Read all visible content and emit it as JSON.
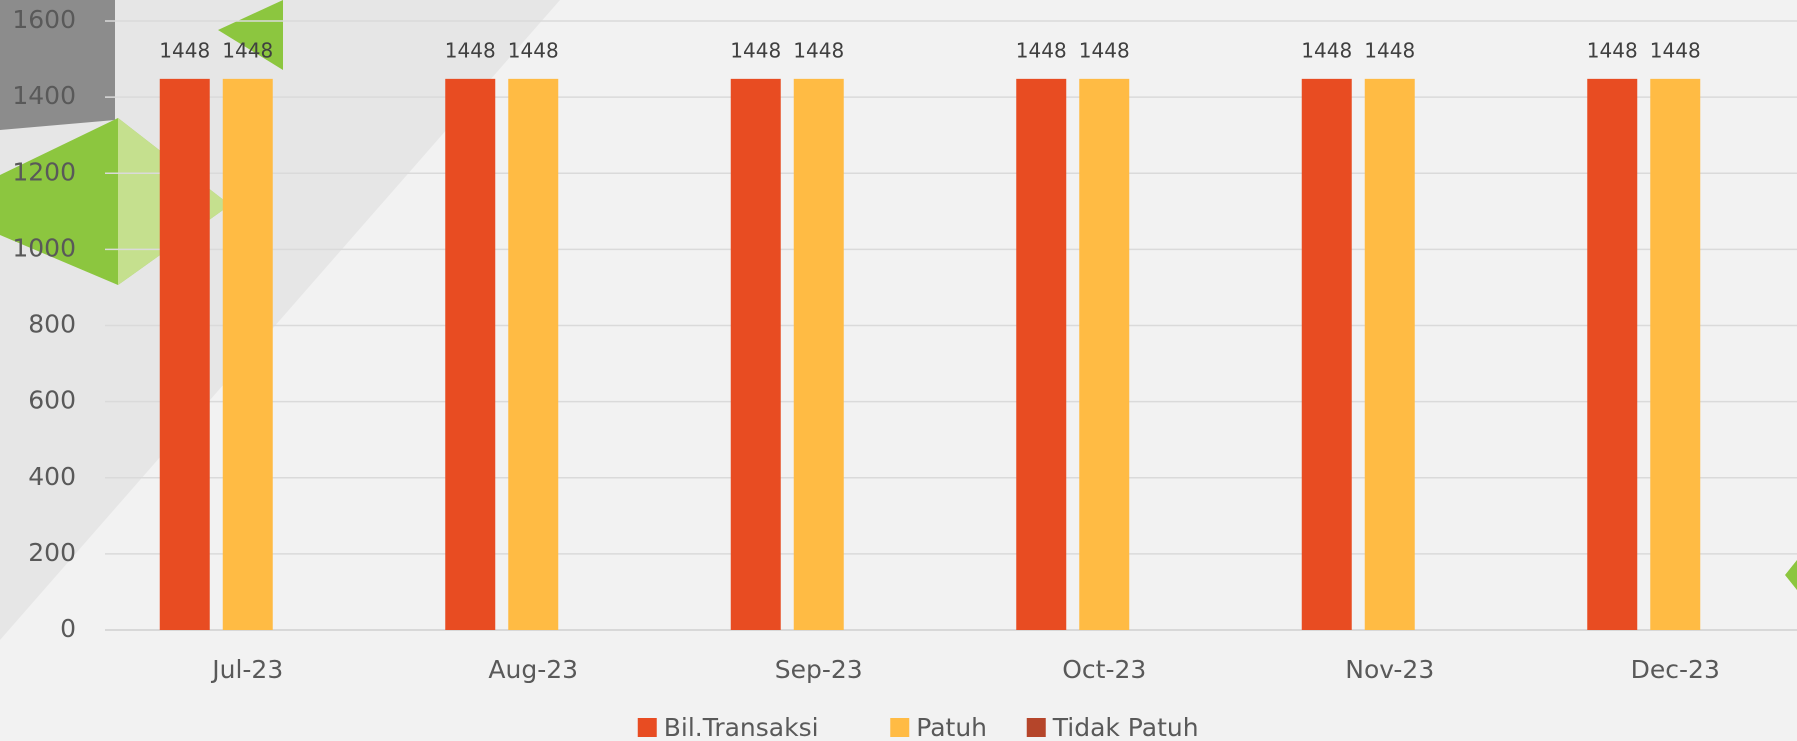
{
  "chart_data": {
    "type": "bar",
    "categories": [
      "Jul-23",
      "Aug-23",
      "Sep-23",
      "Oct-23",
      "Nov-23",
      "Dec-23"
    ],
    "series": [
      {
        "name": "Bil.Transaksi",
        "color": "#e84c22",
        "values": [
          1448,
          1448,
          1448,
          1448,
          1448,
          1448
        ]
      },
      {
        "name": "Patuh",
        "color": "#ffbb44",
        "values": [
          1448,
          1448,
          1448,
          1448,
          1448,
          1448
        ]
      },
      {
        "name": "Tidak Patuh",
        "color": "#b5452a",
        "values": [
          0,
          0,
          0,
          0,
          0,
          0
        ]
      }
    ],
    "ylim": [
      0,
      1600
    ],
    "yticks": [
      0,
      200,
      400,
      600,
      800,
      1000,
      1200,
      1400,
      1600
    ],
    "grid": true,
    "legend": "bottom"
  }
}
